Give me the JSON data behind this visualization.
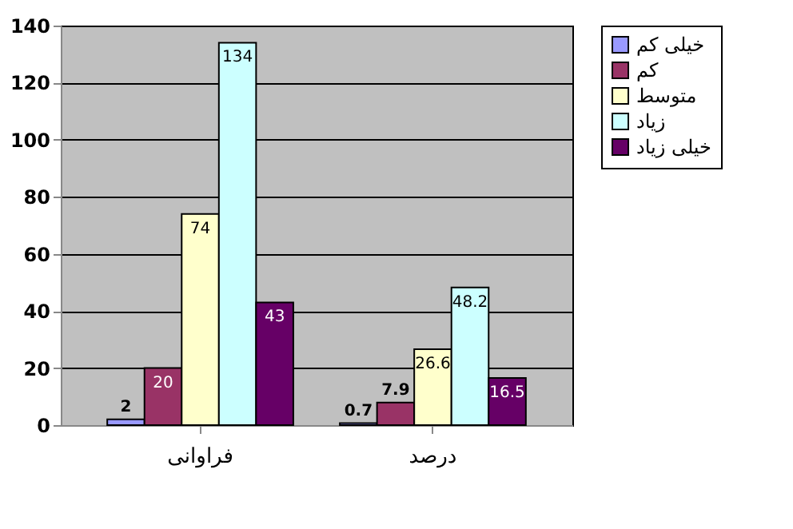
{
  "chart_data": {
    "type": "bar",
    "categories": [
      "فراوانی",
      "درصد"
    ],
    "series": [
      {
        "name": "خیلی کم",
        "color": "#9999ff",
        "values": [
          2,
          0.7
        ]
      },
      {
        "name": "کم",
        "color": "#993366",
        "values": [
          20,
          7.9
        ]
      },
      {
        "name": "متوسط",
        "color": "#ffffcc",
        "values": [
          74,
          26.6
        ]
      },
      {
        "name": "زیاد",
        "color": "#ccffff",
        "values": [
          134,
          48.2
        ]
      },
      {
        "name": "خیلی زیاد",
        "color": "#660066",
        "values": [
          43,
          16.5
        ]
      }
    ],
    "ylim": [
      0,
      140
    ],
    "yticks": [
      0,
      20,
      40,
      60,
      80,
      100,
      120,
      140
    ],
    "grid": "y",
    "legend": "right",
    "data_labels": true
  }
}
